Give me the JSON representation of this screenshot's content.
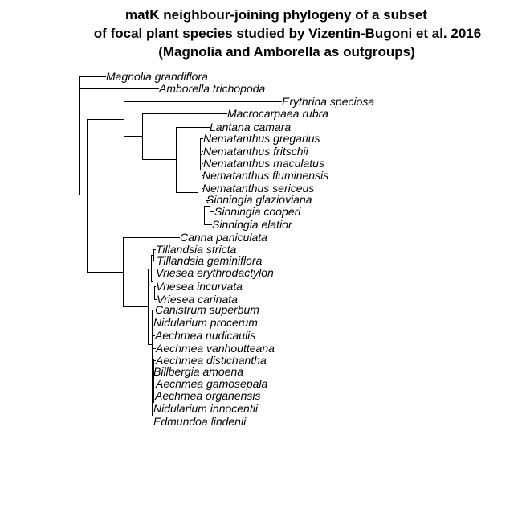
{
  "title": {
    "lines": [
      "matK neighbour-joining phylogeny of a subset",
      "of focal plant species studied by Vizentin-Bugoni et al. 2016",
      "(Magnolia and Amborella as outgroups)"
    ]
  },
  "tree": {
    "tips": [
      "Magnolia grandiflora",
      "Amborella trichopoda",
      "Erythrina speciosa",
      "Macrocarpaea rubra",
      "Lantana camara",
      "Nematanthus gregarius",
      "Nematanthus fritschii",
      "Nematanthus maculatus",
      "Nematanthus fluminensis",
      "Nematanthus sericeus",
      "Sinningia glazioviana",
      "Sinningia cooperi",
      "Sinningia elatior",
      "Canna paniculata",
      "Tillandsia stricta",
      "Tillandsia geminiflora",
      "Vriesea erythrodactylon",
      "Vriesea incurvata",
      "Vriesea carinata",
      "Canistrum superbum",
      "Nidularium procerum",
      "Aechmea nudicaulis",
      "Aechmea vanhoutteana",
      "Aechmea distichantha",
      "Billbergia amoena",
      "Aechmea gamosepala",
      "Aechmea organensis",
      "Nidularium innocentii",
      "Edmundoa lindenii"
    ]
  }
}
